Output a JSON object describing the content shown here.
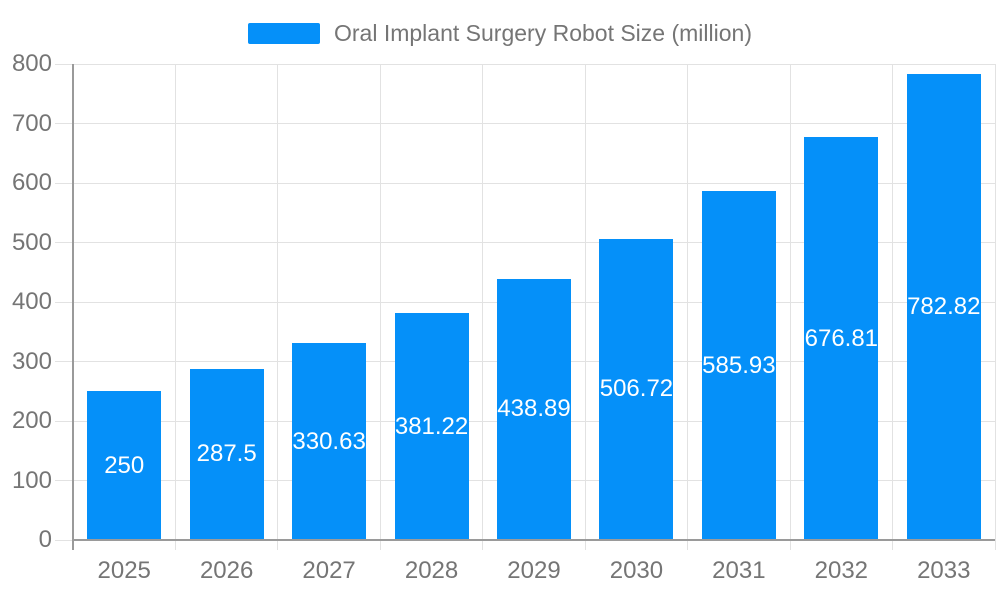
{
  "legend": {
    "position": "top-center"
  },
  "chart_data": {
    "type": "bar",
    "title": "Oral Implant Surgery Robot Size (million)",
    "series_name": "Oral Implant Surgery Robot Size (million)",
    "categories": [
      "2025",
      "2026",
      "2027",
      "2028",
      "2029",
      "2030",
      "2031",
      "2032",
      "2033"
    ],
    "values": [
      250,
      287.5,
      330.63,
      381.22,
      438.89,
      506.72,
      585.93,
      676.81,
      782.82
    ],
    "value_labels": [
      "250",
      "287.5",
      "330.63",
      "381.22",
      "438.89",
      "506.72",
      "585.93",
      "676.81",
      "782.82"
    ],
    "xlabel": "",
    "ylabel": "",
    "ylim": [
      0,
      800
    ],
    "ytick_step": 100,
    "ytick_labels": [
      "0",
      "100",
      "200",
      "300",
      "400",
      "500",
      "600",
      "700",
      "800"
    ],
    "grid": true,
    "legend_position": "top-center",
    "bar_label_color": "#ffffff",
    "colors": {
      "bar": "#0590f9",
      "grid": "#e2e2e2",
      "axis": "#9a9a9a",
      "text": "#757575",
      "background": "#ffffff"
    }
  }
}
